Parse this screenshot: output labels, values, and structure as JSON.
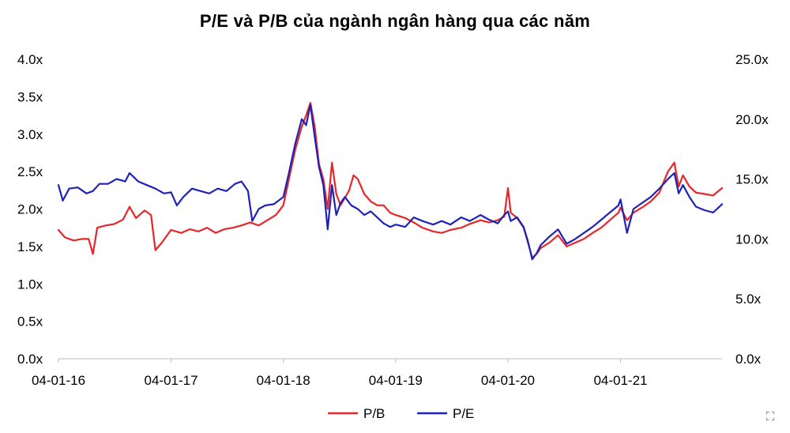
{
  "chart_data": {
    "type": "line",
    "title": "P/E và P/B của ngành ngân hàng qua các năm",
    "x_tick_labels": [
      "04-01-16",
      "04-01-17",
      "04-01-18",
      "04-01-19",
      "04-01-20",
      "04-01-21"
    ],
    "y_left_tick_labels": [
      "0.0x",
      "0.5x",
      "1.0x",
      "1.5x",
      "2.0x",
      "2.5x",
      "3.0x",
      "3.5x",
      "4.0x"
    ],
    "y_right_tick_labels": [
      "0.0x",
      "5.0x",
      "10.0x",
      "15.0x",
      "20.0x",
      "25.0x"
    ],
    "y_left_range": [
      0,
      4
    ],
    "y_right_range": [
      0,
      25
    ],
    "x_range": [
      "2016-01-04",
      "2021-11-30"
    ],
    "legend_position": "bottom-center",
    "grid": false,
    "series": [
      {
        "name": "P/B",
        "axis": "left",
        "color": "#e8262a",
        "points": [
          [
            "2016-01-04",
            1.72
          ],
          [
            "2016-01-25",
            1.62
          ],
          [
            "2016-02-22",
            1.58
          ],
          [
            "2016-03-21",
            1.6
          ],
          [
            "2016-04-11",
            1.6
          ],
          [
            "2016-04-25",
            1.4
          ],
          [
            "2016-05-09",
            1.75
          ],
          [
            "2016-06-06",
            1.78
          ],
          [
            "2016-07-04",
            1.8
          ],
          [
            "2016-08-01",
            1.86
          ],
          [
            "2016-08-22",
            2.03
          ],
          [
            "2016-09-12",
            1.88
          ],
          [
            "2016-10-10",
            1.98
          ],
          [
            "2016-10-31",
            1.92
          ],
          [
            "2016-11-14",
            1.45
          ],
          [
            "2016-12-05",
            1.55
          ],
          [
            "2017-01-04",
            1.72
          ],
          [
            "2017-02-06",
            1.68
          ],
          [
            "2017-03-06",
            1.73
          ],
          [
            "2017-04-03",
            1.7
          ],
          [
            "2017-05-01",
            1.75
          ],
          [
            "2017-05-29",
            1.68
          ],
          [
            "2017-06-26",
            1.73
          ],
          [
            "2017-07-24",
            1.75
          ],
          [
            "2017-08-21",
            1.78
          ],
          [
            "2017-09-18",
            1.82
          ],
          [
            "2017-10-16",
            1.78
          ],
          [
            "2017-11-13",
            1.85
          ],
          [
            "2017-12-11",
            1.92
          ],
          [
            "2018-01-04",
            2.05
          ],
          [
            "2018-01-22",
            2.4
          ],
          [
            "2018-02-12",
            2.8
          ],
          [
            "2018-03-05",
            3.1
          ],
          [
            "2018-03-19",
            3.25
          ],
          [
            "2018-04-02",
            3.42
          ],
          [
            "2018-04-16",
            3.1
          ],
          [
            "2018-04-30",
            2.6
          ],
          [
            "2018-05-14",
            2.4
          ],
          [
            "2018-05-28",
            2.0
          ],
          [
            "2018-06-11",
            2.62
          ],
          [
            "2018-06-25",
            2.2
          ],
          [
            "2018-07-09",
            2.05
          ],
          [
            "2018-07-23",
            2.15
          ],
          [
            "2018-08-06",
            2.25
          ],
          [
            "2018-08-20",
            2.45
          ],
          [
            "2018-09-03",
            2.4
          ],
          [
            "2018-09-24",
            2.2
          ],
          [
            "2018-10-15",
            2.1
          ],
          [
            "2018-11-05",
            2.05
          ],
          [
            "2018-11-26",
            2.05
          ],
          [
            "2018-12-17",
            1.95
          ],
          [
            "2019-01-04",
            1.92
          ],
          [
            "2019-02-04",
            1.88
          ],
          [
            "2019-03-04",
            1.82
          ],
          [
            "2019-04-01",
            1.75
          ],
          [
            "2019-05-06",
            1.7
          ],
          [
            "2019-06-03",
            1.68
          ],
          [
            "2019-07-01",
            1.72
          ],
          [
            "2019-08-05",
            1.75
          ],
          [
            "2019-09-02",
            1.8
          ],
          [
            "2019-10-07",
            1.85
          ],
          [
            "2019-11-04",
            1.82
          ],
          [
            "2019-12-02",
            1.85
          ],
          [
            "2019-12-23",
            1.9
          ],
          [
            "2020-01-04",
            2.28
          ],
          [
            "2020-01-13",
            1.95
          ],
          [
            "2020-02-03",
            1.88
          ],
          [
            "2020-02-24",
            1.75
          ],
          [
            "2020-03-09",
            1.55
          ],
          [
            "2020-03-23",
            1.35
          ],
          [
            "2020-04-06",
            1.4
          ],
          [
            "2020-04-20",
            1.48
          ],
          [
            "2020-05-18",
            1.55
          ],
          [
            "2020-06-15",
            1.65
          ],
          [
            "2020-07-13",
            1.5
          ],
          [
            "2020-08-10",
            1.55
          ],
          [
            "2020-09-07",
            1.6
          ],
          [
            "2020-10-05",
            1.68
          ],
          [
            "2020-11-02",
            1.75
          ],
          [
            "2020-11-30",
            1.85
          ],
          [
            "2020-12-28",
            1.95
          ],
          [
            "2021-01-04",
            2.02
          ],
          [
            "2021-01-25",
            1.85
          ],
          [
            "2021-02-15",
            1.95
          ],
          [
            "2021-03-15",
            2.02
          ],
          [
            "2021-04-12",
            2.1
          ],
          [
            "2021-05-10",
            2.22
          ],
          [
            "2021-06-07",
            2.5
          ],
          [
            "2021-06-28",
            2.62
          ],
          [
            "2021-07-12",
            2.3
          ],
          [
            "2021-07-26",
            2.45
          ],
          [
            "2021-08-16",
            2.3
          ],
          [
            "2021-09-06",
            2.22
          ],
          [
            "2021-10-04",
            2.2
          ],
          [
            "2021-11-01",
            2.18
          ],
          [
            "2021-11-30",
            2.28
          ]
        ]
      },
      {
        "name": "P/E",
        "axis": "right",
        "color": "#1e22b8",
        "points": [
          [
            "2016-01-04",
            14.5
          ],
          [
            "2016-01-18",
            13.2
          ],
          [
            "2016-02-08",
            14.2
          ],
          [
            "2016-03-07",
            14.3
          ],
          [
            "2016-04-04",
            13.8
          ],
          [
            "2016-04-25",
            14.0
          ],
          [
            "2016-05-16",
            14.6
          ],
          [
            "2016-06-13",
            14.6
          ],
          [
            "2016-07-11",
            15.0
          ],
          [
            "2016-08-08",
            14.8
          ],
          [
            "2016-08-22",
            15.5
          ],
          [
            "2016-09-19",
            14.8
          ],
          [
            "2016-10-17",
            14.5
          ],
          [
            "2016-11-14",
            14.2
          ],
          [
            "2016-12-12",
            13.8
          ],
          [
            "2017-01-04",
            13.9
          ],
          [
            "2017-01-23",
            12.8
          ],
          [
            "2017-02-13",
            13.5
          ],
          [
            "2017-03-13",
            14.2
          ],
          [
            "2017-04-10",
            14.0
          ],
          [
            "2017-05-08",
            13.8
          ],
          [
            "2017-06-05",
            14.2
          ],
          [
            "2017-07-03",
            14.0
          ],
          [
            "2017-07-31",
            14.6
          ],
          [
            "2017-08-21",
            14.8
          ],
          [
            "2017-09-11",
            14.0
          ],
          [
            "2017-09-25",
            11.5
          ],
          [
            "2017-10-16",
            12.5
          ],
          [
            "2017-11-06",
            12.8
          ],
          [
            "2017-12-04",
            12.9
          ],
          [
            "2018-01-04",
            13.5
          ],
          [
            "2018-01-22",
            15.5
          ],
          [
            "2018-02-12",
            18.0
          ],
          [
            "2018-03-05",
            20.0
          ],
          [
            "2018-03-19",
            19.5
          ],
          [
            "2018-04-02",
            21.2
          ],
          [
            "2018-04-16",
            18.5
          ],
          [
            "2018-04-30",
            16.0
          ],
          [
            "2018-05-14",
            14.5
          ],
          [
            "2018-05-28",
            10.8
          ],
          [
            "2018-06-11",
            14.5
          ],
          [
            "2018-06-25",
            12.0
          ],
          [
            "2018-07-09",
            13.0
          ],
          [
            "2018-07-23",
            13.5
          ],
          [
            "2018-08-13",
            12.8
          ],
          [
            "2018-09-03",
            12.5
          ],
          [
            "2018-09-24",
            12.0
          ],
          [
            "2018-10-15",
            12.3
          ],
          [
            "2018-11-05",
            11.8
          ],
          [
            "2018-11-26",
            11.3
          ],
          [
            "2018-12-17",
            11.0
          ],
          [
            "2019-01-04",
            11.2
          ],
          [
            "2019-02-04",
            11.0
          ],
          [
            "2019-03-04",
            11.8
          ],
          [
            "2019-04-01",
            11.5
          ],
          [
            "2019-05-06",
            11.2
          ],
          [
            "2019-06-03",
            11.5
          ],
          [
            "2019-07-01",
            11.2
          ],
          [
            "2019-08-05",
            11.8
          ],
          [
            "2019-09-02",
            11.5
          ],
          [
            "2019-10-07",
            12.0
          ],
          [
            "2019-11-04",
            11.6
          ],
          [
            "2019-12-02",
            11.3
          ],
          [
            "2019-12-23",
            12.0
          ],
          [
            "2020-01-04",
            12.3
          ],
          [
            "2020-01-13",
            11.5
          ],
          [
            "2020-02-03",
            11.8
          ],
          [
            "2020-02-24",
            11.0
          ],
          [
            "2020-03-09",
            9.8
          ],
          [
            "2020-03-23",
            8.3
          ],
          [
            "2020-04-06",
            8.8
          ],
          [
            "2020-04-20",
            9.5
          ],
          [
            "2020-05-18",
            10.2
          ],
          [
            "2020-06-15",
            10.8
          ],
          [
            "2020-07-13",
            9.6
          ],
          [
            "2020-08-10",
            10.0
          ],
          [
            "2020-09-07",
            10.5
          ],
          [
            "2020-10-05",
            11.0
          ],
          [
            "2020-11-02",
            11.6
          ],
          [
            "2020-11-30",
            12.2
          ],
          [
            "2020-12-28",
            12.8
          ],
          [
            "2021-01-04",
            13.3
          ],
          [
            "2021-01-25",
            10.5
          ],
          [
            "2021-02-15",
            12.5
          ],
          [
            "2021-03-15",
            13.0
          ],
          [
            "2021-04-12",
            13.5
          ],
          [
            "2021-05-10",
            14.2
          ],
          [
            "2021-06-07",
            15.0
          ],
          [
            "2021-06-28",
            15.5
          ],
          [
            "2021-07-12",
            13.8
          ],
          [
            "2021-07-26",
            14.5
          ],
          [
            "2021-08-16",
            13.5
          ],
          [
            "2021-09-06",
            12.7
          ],
          [
            "2021-10-04",
            12.4
          ],
          [
            "2021-11-01",
            12.2
          ],
          [
            "2021-11-30",
            12.9
          ]
        ]
      }
    ]
  }
}
